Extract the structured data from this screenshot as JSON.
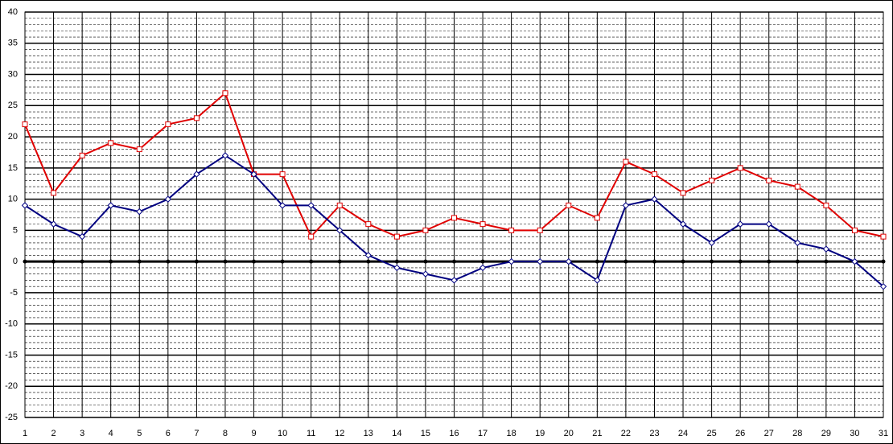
{
  "chart_data": {
    "type": "line",
    "x": [
      1,
      2,
      3,
      4,
      5,
      6,
      7,
      8,
      9,
      10,
      11,
      12,
      13,
      14,
      15,
      16,
      17,
      18,
      19,
      20,
      21,
      22,
      23,
      24,
      25,
      26,
      27,
      28,
      29,
      30,
      31
    ],
    "series": [
      {
        "color": "#e00000",
        "marker": "square",
        "values": [
          22,
          11,
          17,
          19,
          18,
          22,
          23,
          27,
          14,
          14,
          4,
          9,
          6,
          4,
          5,
          7,
          6,
          5,
          5,
          9,
          7,
          16,
          14,
          11,
          13,
          15,
          13,
          12,
          9,
          5,
          4
        ]
      },
      {
        "color": "#000080",
        "marker": "diamond",
        "values": [
          9,
          6,
          4,
          9,
          8,
          10,
          14,
          17,
          14,
          9,
          9,
          5,
          1,
          -1,
          -2,
          -3,
          -1,
          0,
          0,
          0,
          -3,
          9,
          10,
          6,
          3,
          6,
          6,
          3,
          2,
          0,
          -4
        ]
      }
    ],
    "xlim": [
      1,
      31
    ],
    "xticks": [
      1,
      2,
      3,
      4,
      5,
      6,
      7,
      8,
      9,
      10,
      11,
      12,
      13,
      14,
      15,
      16,
      17,
      18,
      19,
      20,
      21,
      22,
      23,
      24,
      25,
      26,
      27,
      28,
      29,
      30,
      31
    ],
    "ylim": [
      -25,
      40
    ],
    "yticks": [
      -25,
      -20,
      -15,
      -10,
      -5,
      0,
      5,
      10,
      15,
      20,
      25,
      30,
      35,
      40
    ],
    "grid": true,
    "minor_grid": 1
  }
}
